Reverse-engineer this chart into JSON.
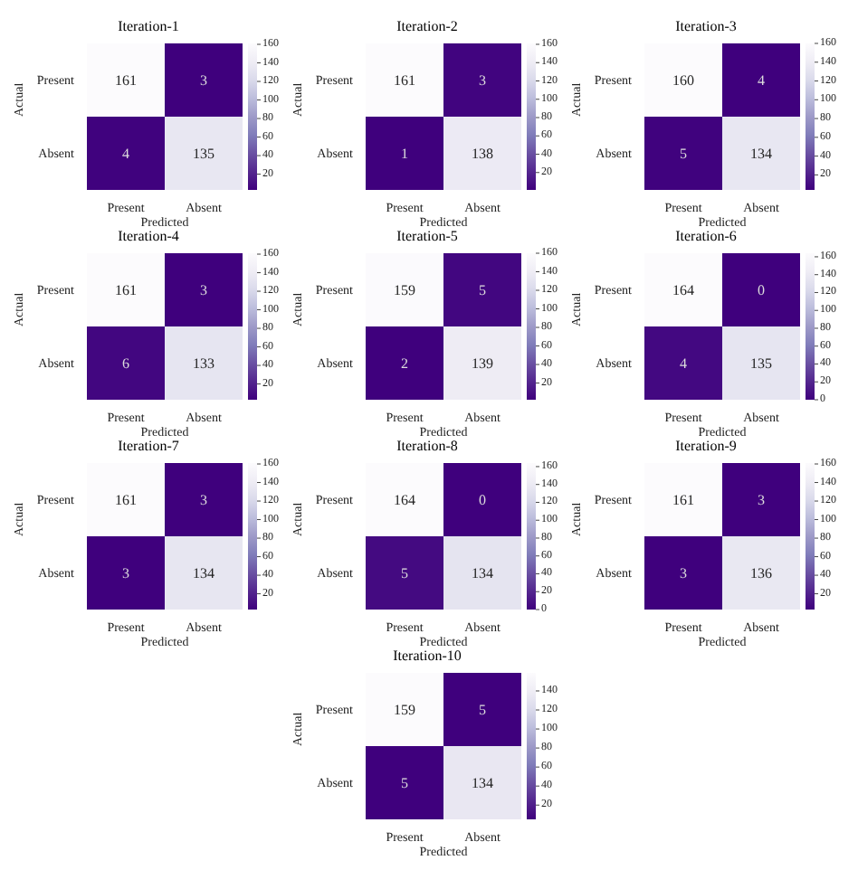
{
  "chart_data": [
    {
      "type": "heatmap",
      "title": "Iteration-1",
      "xlabel": "Predicted",
      "ylabel": "Actual",
      "categories": [
        "Present",
        "Absent"
      ],
      "y_categories": [
        "Present",
        "Absent"
      ],
      "cells": [
        [
          161,
          3
        ],
        [
          4,
          135
        ]
      ],
      "clim": [
        3,
        161
      ],
      "cticks": [
        20,
        40,
        60,
        80,
        100,
        120,
        140,
        160
      ],
      "data_labels": true
    },
    {
      "type": "heatmap",
      "title": "Iteration-2",
      "xlabel": "Predicted",
      "ylabel": "Actual",
      "categories": [
        "Present",
        "Absent"
      ],
      "y_categories": [
        "Present",
        "Absent"
      ],
      "cells": [
        [
          161,
          3
        ],
        [
          1,
          138
        ]
      ],
      "clim": [
        1,
        161
      ],
      "cticks": [
        20,
        40,
        60,
        80,
        100,
        120,
        140,
        160
      ],
      "data_labels": true
    },
    {
      "type": "heatmap",
      "title": "Iteration-3",
      "xlabel": "Predicted",
      "ylabel": "Actual",
      "categories": [
        "Present",
        "Absent"
      ],
      "y_categories": [
        "Present",
        "Absent"
      ],
      "cells": [
        [
          160,
          4
        ],
        [
          5,
          134
        ]
      ],
      "clim": [
        4,
        160
      ],
      "cticks": [
        20,
        40,
        60,
        80,
        100,
        120,
        140,
        160
      ],
      "data_labels": true
    },
    {
      "type": "heatmap",
      "title": "Iteration-4",
      "xlabel": "Predicted",
      "ylabel": "Actual",
      "categories": [
        "Present",
        "Absent"
      ],
      "y_categories": [
        "Present",
        "Absent"
      ],
      "cells": [
        [
          161,
          3
        ],
        [
          6,
          133
        ]
      ],
      "clim": [
        3,
        161
      ],
      "cticks": [
        20,
        40,
        60,
        80,
        100,
        120,
        140,
        160
      ],
      "data_labels": true
    },
    {
      "type": "heatmap",
      "title": "Iteration-5",
      "xlabel": "Predicted",
      "ylabel": "Actual",
      "categories": [
        "Present",
        "Absent"
      ],
      "y_categories": [
        "Present",
        "Absent"
      ],
      "cells": [
        [
          159,
          5
        ],
        [
          2,
          139
        ]
      ],
      "clim": [
        2,
        160
      ],
      "cticks": [
        20,
        40,
        60,
        80,
        100,
        120,
        140,
        160
      ],
      "data_labels": true
    },
    {
      "type": "heatmap",
      "title": "Iteration-6",
      "xlabel": "Predicted",
      "ylabel": "Actual",
      "categories": [
        "Present",
        "Absent"
      ],
      "y_categories": [
        "Present",
        "Absent"
      ],
      "cells": [
        [
          164,
          0
        ],
        [
          4,
          135
        ]
      ],
      "clim": [
        0,
        164
      ],
      "cticks": [
        0,
        20,
        40,
        60,
        80,
        100,
        120,
        140,
        160
      ],
      "data_labels": true
    },
    {
      "type": "heatmap",
      "title": "Iteration-7",
      "xlabel": "Predicted",
      "ylabel": "Actual",
      "categories": [
        "Present",
        "Absent"
      ],
      "y_categories": [
        "Present",
        "Absent"
      ],
      "cells": [
        [
          161,
          3
        ],
        [
          3,
          134
        ]
      ],
      "clim": [
        3,
        161
      ],
      "cticks": [
        20,
        40,
        60,
        80,
        100,
        120,
        140,
        160
      ],
      "data_labels": true
    },
    {
      "type": "heatmap",
      "title": "Iteration-8",
      "xlabel": "Predicted",
      "ylabel": "Actual",
      "categories": [
        "Present",
        "Absent"
      ],
      "y_categories": [
        "Present",
        "Absent"
      ],
      "cells": [
        [
          164,
          0
        ],
        [
          5,
          134
        ]
      ],
      "clim": [
        0,
        164
      ],
      "cticks": [
        0,
        20,
        40,
        60,
        80,
        100,
        120,
        140,
        160
      ],
      "data_labels": true
    },
    {
      "type": "heatmap",
      "title": "Iteration-9",
      "xlabel": "Predicted",
      "ylabel": "Actual",
      "categories": [
        "Present",
        "Absent"
      ],
      "y_categories": [
        "Present",
        "Absent"
      ],
      "cells": [
        [
          161,
          3
        ],
        [
          3,
          136
        ]
      ],
      "clim": [
        3,
        161
      ],
      "cticks": [
        20,
        40,
        60,
        80,
        100,
        120,
        140,
        160
      ],
      "data_labels": true
    },
    {
      "type": "heatmap",
      "title": "Iteration-10",
      "xlabel": "Predicted",
      "ylabel": "Actual",
      "categories": [
        "Present",
        "Absent"
      ],
      "y_categories": [
        "Present",
        "Absent"
      ],
      "cells": [
        [
          159,
          5
        ],
        [
          5,
          134
        ]
      ],
      "clim": [
        5,
        159
      ],
      "cticks": [
        20,
        40,
        60,
        80,
        100,
        120,
        140
      ],
      "data_labels": true
    }
  ]
}
